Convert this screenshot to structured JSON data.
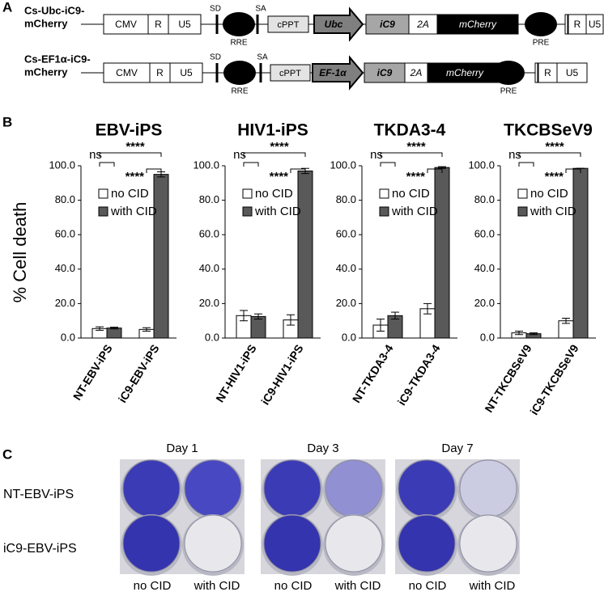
{
  "panel_labels": [
    "A",
    "B",
    "C"
  ],
  "constructs": [
    {
      "name_lines": [
        "Cs-Ubc-iC9-",
        "mCherry"
      ],
      "elements": [
        "CMV",
        "R",
        "U5",
        "SD",
        "RRE",
        "SA",
        "cPPT",
        "Ubc",
        "iC9",
        "2A",
        "mCherry",
        "PRE",
        "R",
        "U5"
      ]
    },
    {
      "name_lines": [
        "Cs-EF1α-iC9-",
        "mCherry"
      ],
      "elements": [
        "CMV",
        "R",
        "U5",
        "SD",
        "RRE",
        "SA",
        "cPPT",
        "EF-1α",
        "iC9",
        "2A",
        "mCherry",
        "PRE",
        "R",
        "U5"
      ]
    }
  ],
  "chart_data": [
    {
      "type": "bar",
      "title": "EBV-iPS",
      "ylabel": "% Cell death",
      "categories": [
        "NT-EBV-iPS",
        "iC9-EBV-iPS"
      ],
      "series": [
        {
          "name": "no CID",
          "color": "#ffffff",
          "values": [
            5.5,
            5
          ],
          "errors": [
            1,
            1
          ]
        },
        {
          "name": "with CID",
          "color": "#595959",
          "values": [
            5.8,
            95
          ],
          "errors": [
            0.5,
            1.5
          ]
        }
      ],
      "ylim": [
        0,
        100
      ],
      "yticks": [
        {
          "value": 0,
          "label": "0.0"
        },
        {
          "value": 20,
          "label": "20.0"
        },
        {
          "value": 40,
          "label": "40.0"
        },
        {
          "value": 60,
          "label": "60.0"
        },
        {
          "value": 80,
          "label": "80.0"
        },
        {
          "value": 100,
          "label": "100.0"
        }
      ],
      "annotations": [
        "ns",
        "****",
        "****"
      ]
    },
    {
      "type": "bar",
      "title": "HIV1-iPS",
      "categories": [
        "NT-HIV1-iPS",
        "iC9-HIV1-iPS"
      ],
      "series": [
        {
          "name": "no CID",
          "color": "#ffffff",
          "values": [
            13,
            10.5
          ],
          "errors": [
            3,
            3
          ]
        },
        {
          "name": "with CID",
          "color": "#595959",
          "values": [
            12.5,
            97
          ],
          "errors": [
            1.5,
            1.5
          ]
        }
      ],
      "ylim": [
        0,
        100
      ],
      "yticks": [
        {
          "value": 0,
          "label": "0.0"
        },
        {
          "value": 20,
          "label": "20.0"
        },
        {
          "value": 40,
          "label": "40.0"
        },
        {
          "value": 60,
          "label": "60.0"
        },
        {
          "value": 80,
          "label": "80.0"
        },
        {
          "value": 100,
          "label": "100.0"
        }
      ],
      "annotations": [
        "ns",
        "****",
        "****"
      ]
    },
    {
      "type": "bar",
      "title": "TKDA3-4",
      "categories": [
        "NT-TKDA3-4",
        "iC9-TKDA3-4"
      ],
      "series": [
        {
          "name": "no CID",
          "color": "#ffffff",
          "values": [
            7.5,
            17
          ],
          "errors": [
            3.5,
            3
          ]
        },
        {
          "name": "with CID",
          "color": "#595959",
          "values": [
            13,
            99
          ],
          "errors": [
            2,
            0.5
          ]
        }
      ],
      "ylim": [
        0,
        100
      ],
      "yticks": [
        {
          "value": 0,
          "label": "0.0"
        },
        {
          "value": 20,
          "label": "20.0"
        },
        {
          "value": 40,
          "label": "40.0"
        },
        {
          "value": 60,
          "label": "60.0"
        },
        {
          "value": 80,
          "label": "80.0"
        },
        {
          "value": 100,
          "label": "100.0"
        }
      ],
      "annotations": [
        "ns",
        "****",
        "****"
      ]
    },
    {
      "type": "bar",
      "title": "TKCBSeV9",
      "categories": [
        "NT-TKCBSeV9",
        "iC9-TKCBSeV9"
      ],
      "series": [
        {
          "name": "no CID",
          "color": "#ffffff",
          "values": [
            3,
            10
          ],
          "errors": [
            1,
            1.5
          ]
        },
        {
          "name": "with CID",
          "color": "#595959",
          "values": [
            2.5,
            98.5
          ],
          "errors": [
            0.5,
            0
          ]
        }
      ],
      "ylim": [
        0,
        100
      ],
      "yticks": [
        {
          "value": 0,
          "label": "0.0"
        },
        {
          "value": 20,
          "label": "20.0"
        },
        {
          "value": 40,
          "label": "40.0"
        },
        {
          "value": 60,
          "label": "60.0"
        },
        {
          "value": 80,
          "label": "80.0"
        },
        {
          "value": 100,
          "label": "100.0"
        }
      ],
      "annotations": [
        "ns",
        "****",
        "****"
      ]
    }
  ],
  "photos": {
    "days": [
      "Day 1",
      "Day 3",
      "Day 7"
    ],
    "rows": [
      "NT-EBV-iPS",
      "iC9-EBV-iPS"
    ],
    "columns": [
      "no CID",
      "with CID"
    ]
  }
}
